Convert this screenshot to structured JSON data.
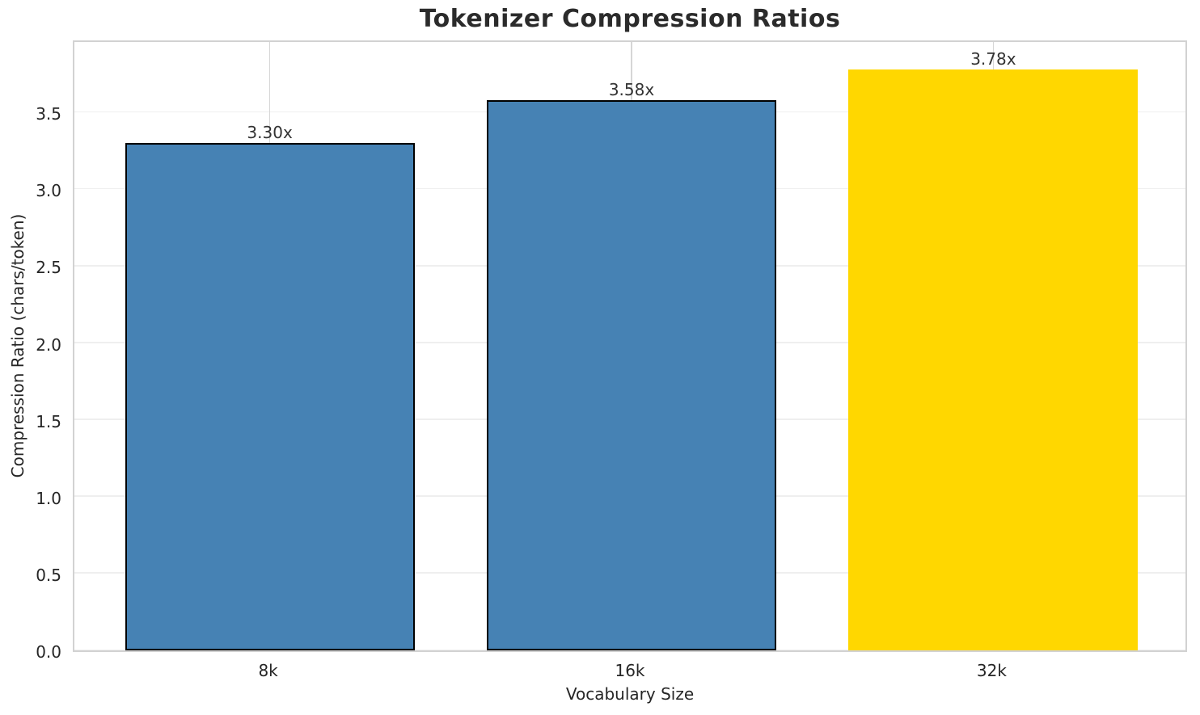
{
  "chart_data": {
    "type": "bar",
    "title": "Tokenizer Compression Ratios",
    "xlabel": "Vocabulary Size",
    "ylabel": "Compression Ratio (chars/token)",
    "categories": [
      "8k",
      "16k",
      "32k"
    ],
    "values": [
      3.3,
      3.58,
      3.78
    ],
    "bar_labels": [
      "3.30x",
      "3.58x",
      "3.78x"
    ],
    "bar_colors": [
      "#4682b4",
      "#4682b4",
      "#ffd700"
    ],
    "bar_edge_colors": [
      "#000000",
      "#000000",
      "#ffd700"
    ],
    "highlight_index": 2,
    "yticks": [
      "0.0",
      "0.5",
      "1.0",
      "1.5",
      "2.0",
      "2.5",
      "3.0",
      "3.5"
    ],
    "ylim": [
      0,
      3.98
    ],
    "xlim": [
      -0.54,
      2.54
    ],
    "bar_width": 0.8,
    "grid": true,
    "legend": "none"
  },
  "colors": {
    "background": "#ffffff",
    "plot_border": "#d2d2d2",
    "gridline_horizontal": "#efefef",
    "gridline_vertical": "#d6d6d6",
    "bar_blue": "#4682b4",
    "bar_gold": "#ffd700",
    "text": "#262626"
  }
}
